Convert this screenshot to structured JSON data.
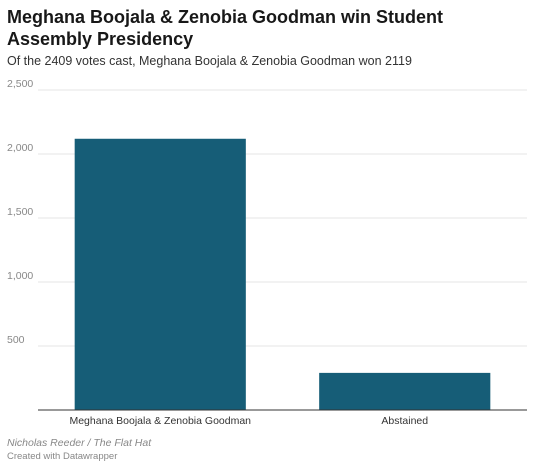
{
  "title": "Meghana Boojala & Zenobia Goodman win Student Assembly Presidency",
  "subtitle": "Of the 2409 votes cast, Meghana Boojala & Zenobia Goodman won 2119",
  "source": "Nicholas Reeder / The Flat Hat",
  "credit": "Created with Datawrapper",
  "colors": {
    "bar": "#165d77",
    "grid": "#e6e6e6",
    "axis": "#333333"
  },
  "chart_data": {
    "type": "bar",
    "categories": [
      "Meghana Boojala & Zenobia Goodman",
      "Abstained"
    ],
    "values": [
      2119,
      290
    ],
    "ylim": [
      0,
      2500
    ],
    "yticks": [
      500,
      1000,
      1500,
      2000,
      2500
    ],
    "ytick_labels": [
      "500",
      "1,000",
      "1,500",
      "2,000",
      "2,500"
    ],
    "grid": true,
    "xlabel": "",
    "ylabel": ""
  }
}
